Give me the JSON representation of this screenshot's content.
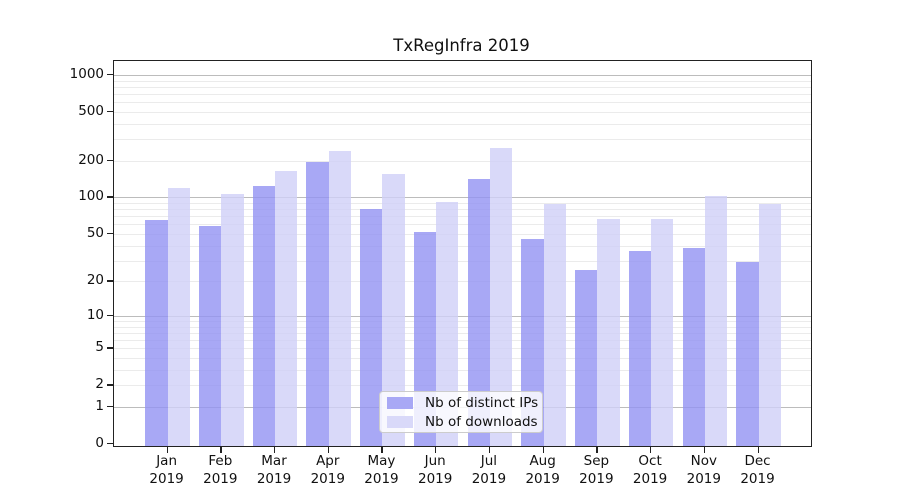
{
  "title": "TxRegInfra 2019",
  "colors": {
    "distinct_ips_bar": "#a8a8f5",
    "downloads_bar": "#d9d9f9",
    "grid_major": "#bcbcbc",
    "grid_minor": "#ebebeb",
    "axis": "#222222",
    "legend_border": "#cccccc"
  },
  "legend": {
    "items": [
      {
        "label": "Nb of distinct IPs"
      },
      {
        "label": "Nb of downloads"
      }
    ]
  },
  "chart_data": {
    "type": "bar",
    "title": "TxRegInfra 2019",
    "xlabel": "",
    "ylabel": "",
    "yscale": "log10(value+1), linear segment 0→1",
    "ylim": [
      0,
      1000
    ],
    "grid": true,
    "legend_position": "bottom-center-inside",
    "y_ticks": [
      0,
      1,
      2,
      5,
      10,
      20,
      50,
      100,
      200,
      500,
      1000
    ],
    "categories": [
      "Jan 2019",
      "Feb 2019",
      "Mar 2019",
      "Apr 2019",
      "May 2019",
      "Jun 2019",
      "Jul 2019",
      "Aug 2019",
      "Sep 2019",
      "Oct 2019",
      "Nov 2019",
      "Dec 2019"
    ],
    "series": [
      {
        "name": "Nb of distinct IPs",
        "color": "#a8a8f5",
        "values": [
          65,
          58,
          125,
          194,
          81,
          52,
          143,
          45,
          25,
          36,
          38,
          29
        ]
      },
      {
        "name": "Nb of downloads",
        "color": "#d9d9f9",
        "values": [
          120,
          107,
          166,
          240,
          157,
          92,
          255,
          88,
          66,
          66,
          103,
          89
        ]
      }
    ]
  }
}
